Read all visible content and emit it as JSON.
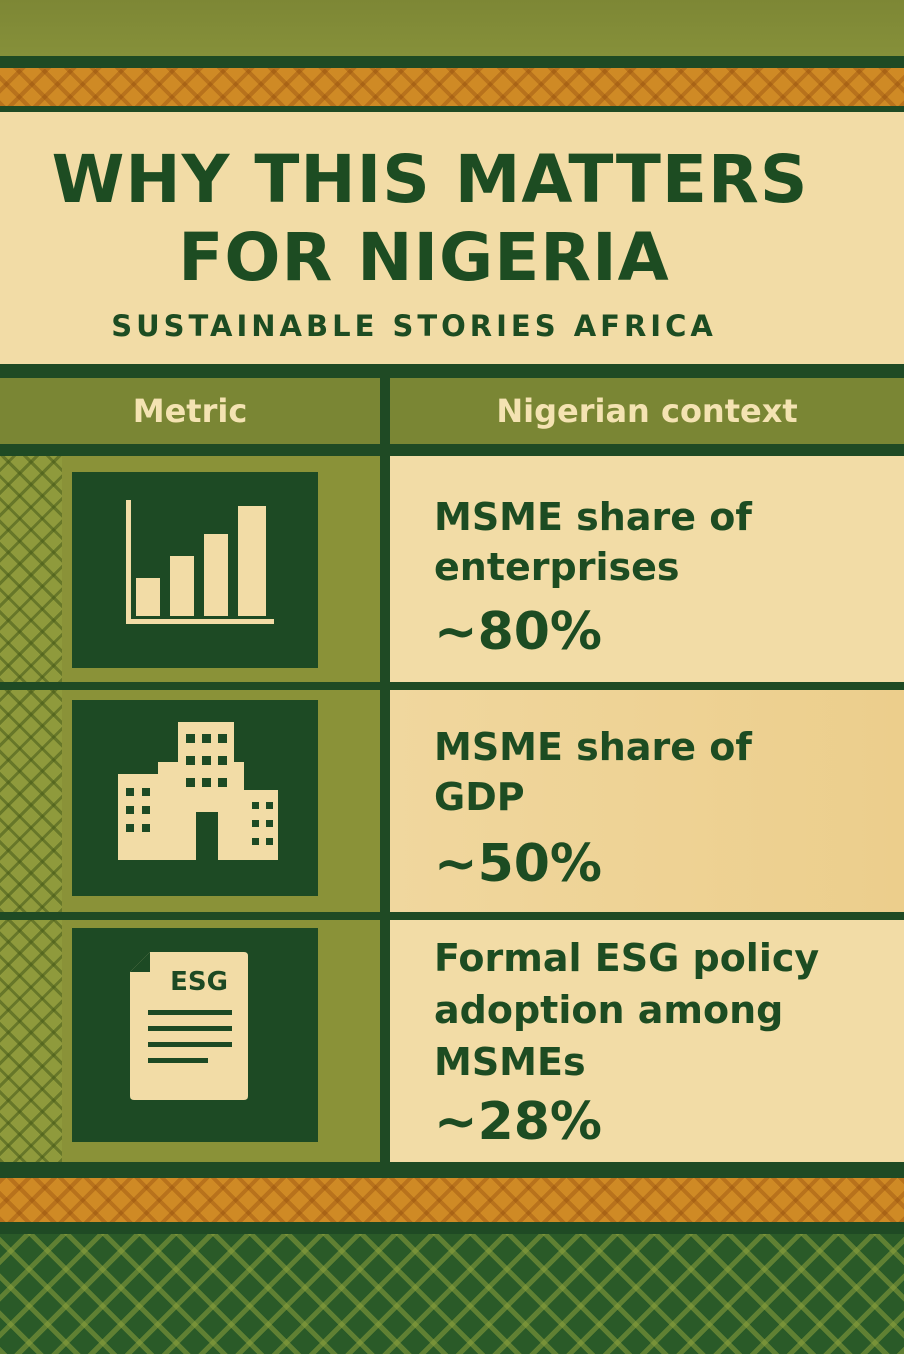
{
  "header": {
    "title_line1": "WHY THIS MATTERS",
    "title_line2": "FOR NIGERIA",
    "subtitle": "SUSTAINABLE STORIES AFRICA"
  },
  "table": {
    "columns": [
      "Metric",
      "Nigerian context"
    ],
    "rows": [
      {
        "icon": "bar-chart-icon",
        "label_lines": [
          "MSME share of",
          "enterprises"
        ],
        "value": "~80%"
      },
      {
        "icon": "buildings-icon",
        "label_lines": [
          "MSME share of",
          "GDP"
        ],
        "value": "~50%"
      },
      {
        "icon": "esg-document-icon",
        "icon_text": "ESG",
        "label_lines": [
          "Formal ESG policy",
          "adoption among",
          "MSMEs"
        ],
        "value": "~28%"
      }
    ]
  },
  "colors": {
    "dark_green": "#1d4c22",
    "olive": "#7a8634",
    "cream": "#f2dca6",
    "orange": "#cf8a25"
  }
}
